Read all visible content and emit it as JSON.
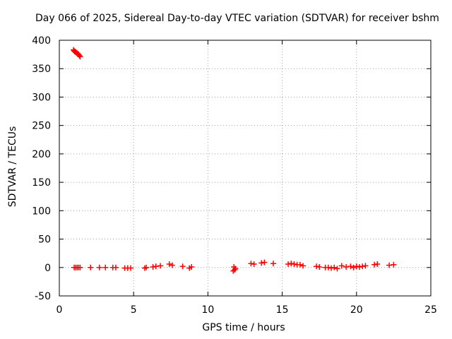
{
  "chart_data": {
    "type": "scatter",
    "title": "Day 066 of 2025, Sidereal Day-to-day VTEC variation (SDTVAR) for receiver bshm",
    "xlabel": "GPS time / hours",
    "ylabel": "SDTVAR / TECUs",
    "xlim": [
      0,
      25
    ],
    "ylim": [
      -50,
      400
    ],
    "xticks": [
      "0",
      "5",
      "10",
      "15",
      "20",
      "25"
    ],
    "yticks": [
      "-50",
      "0",
      "50",
      "100",
      "150",
      "200",
      "250",
      "300",
      "350",
      "400"
    ],
    "grid": true,
    "marker": "+",
    "color": "#ff0000",
    "series": [
      {
        "name": "SDTVAR",
        "x": [
          0.95,
          1.0,
          1.05,
          1.1,
          1.15,
          1.2,
          1.25,
          1.3,
          1.35,
          1.4,
          1.0,
          1.1,
          1.2,
          1.3,
          1.4,
          2.1,
          2.7,
          3.1,
          3.6,
          3.8,
          4.4,
          4.6,
          4.8,
          5.75,
          5.85,
          6.3,
          6.5,
          6.8,
          7.4,
          7.6,
          8.3,
          8.75,
          8.9,
          11.7,
          11.8,
          11.75,
          11.85,
          12.9,
          13.1,
          13.6,
          13.8,
          14.4,
          15.4,
          15.6,
          15.8,
          16.0,
          16.2,
          16.4,
          17.3,
          17.5,
          17.9,
          18.1,
          18.3,
          18.5,
          18.7,
          19.0,
          19.3,
          19.6,
          19.8,
          20.0,
          20.2,
          20.4,
          20.6,
          21.2,
          21.4,
          22.2,
          22.5
        ],
        "y": [
          383,
          381,
          380,
          379,
          378,
          377,
          376,
          375,
          373,
          371,
          0,
          0,
          0,
          0,
          0,
          0,
          0,
          0,
          0,
          0,
          -1,
          -1,
          -1,
          -1,
          0,
          1,
          2,
          3,
          6,
          4,
          2,
          -1,
          1,
          -6,
          -4,
          1,
          -2,
          7,
          6,
          8,
          9,
          7,
          6,
          7,
          6,
          5,
          5,
          3,
          2,
          1,
          0,
          0,
          -1,
          0,
          -2,
          3,
          1,
          2,
          0,
          2,
          1,
          2,
          3,
          5,
          6,
          4,
          5
        ]
      }
    ]
  }
}
